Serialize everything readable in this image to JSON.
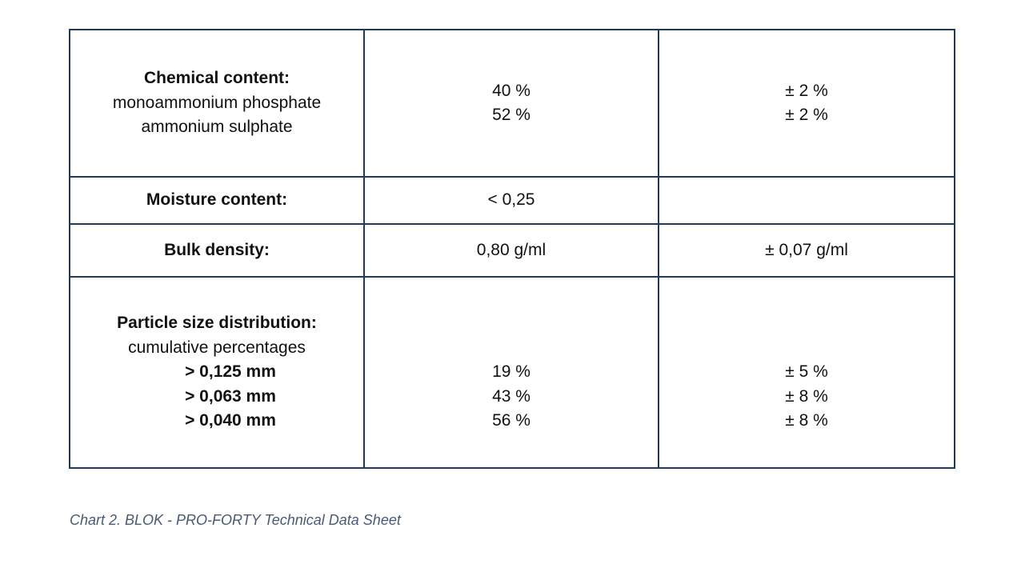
{
  "table": {
    "rows": [
      {
        "label": "Chemical content:",
        "sublabels": [
          "monoammonium phosphate",
          "ammonium sulphate"
        ],
        "values": [
          "40 %",
          "52 %"
        ],
        "tolerances": [
          "± 2 %",
          "± 2 %"
        ]
      },
      {
        "label": "Moisture content:",
        "value": "< 0,25",
        "tolerance": ""
      },
      {
        "label": "Bulk density:",
        "value": "0,80 g/ml",
        "tolerance": "± 0,07 g/ml"
      },
      {
        "label": "Particle size distribution:",
        "sublabel": "cumulative percentages",
        "sizes": [
          "> 0,125 mm",
          "> 0,063 mm",
          "> 0,040 mm"
        ],
        "values": [
          "19 %",
          "43 %",
          "56 %"
        ],
        "tolerances": [
          "± 5 %",
          "± 8 %",
          "± 8 %"
        ]
      }
    ]
  },
  "caption": "Chart 2. BLOK - PRO-FORTY Technical Data Sheet"
}
